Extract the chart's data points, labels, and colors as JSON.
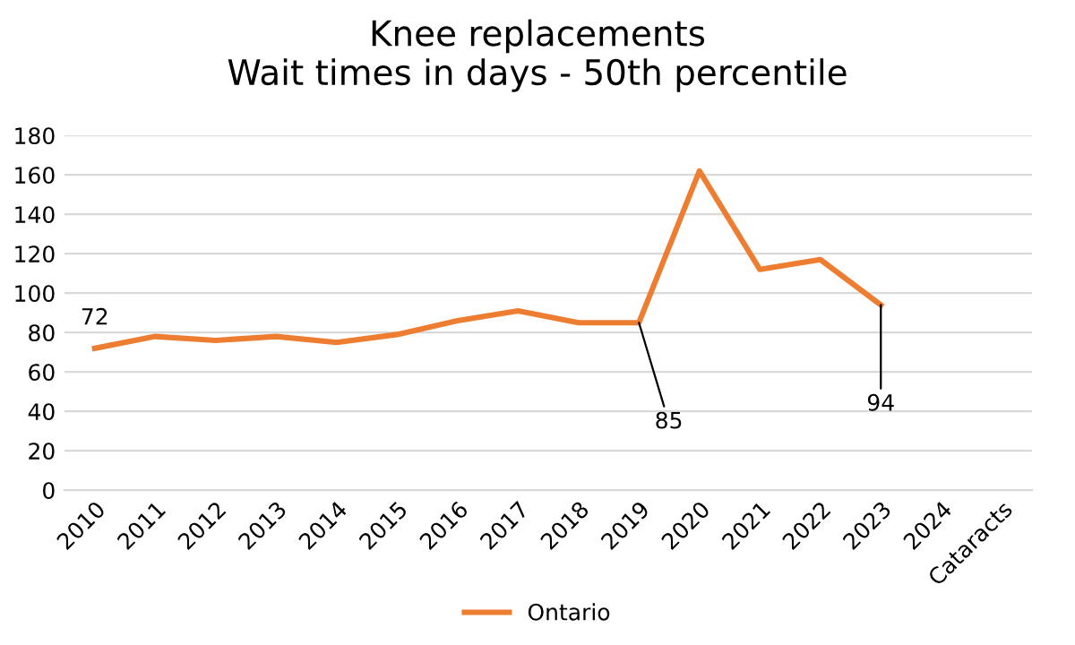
{
  "chart_data": {
    "type": "line",
    "title": "Knee replacements\nWait times in days - 50th percentile",
    "categories": [
      "2010",
      "2011",
      "2012",
      "2013",
      "2014",
      "2015",
      "2016",
      "2017",
      "2018",
      "2019",
      "2020",
      "2021",
      "2022",
      "2023",
      "2024",
      "Cataracts"
    ],
    "series": [
      {
        "name": "Ontario",
        "color": "#ed7d31",
        "values": [
          72,
          78,
          76,
          78,
          75,
          79,
          86,
          91,
          85,
          85,
          162,
          112,
          117,
          94,
          null,
          null
        ],
        "value_labels": [
          "72",
          null,
          null,
          null,
          null,
          null,
          null,
          null,
          null,
          "85",
          null,
          null,
          null,
          "94",
          null,
          null
        ]
      }
    ],
    "ylim": [
      0,
      180
    ],
    "yticks": [
      0,
      20,
      40,
      60,
      80,
      100,
      120,
      140,
      160,
      180
    ],
    "grid": "y",
    "legend": "bottom",
    "marker": "none",
    "line_style": "solid"
  }
}
